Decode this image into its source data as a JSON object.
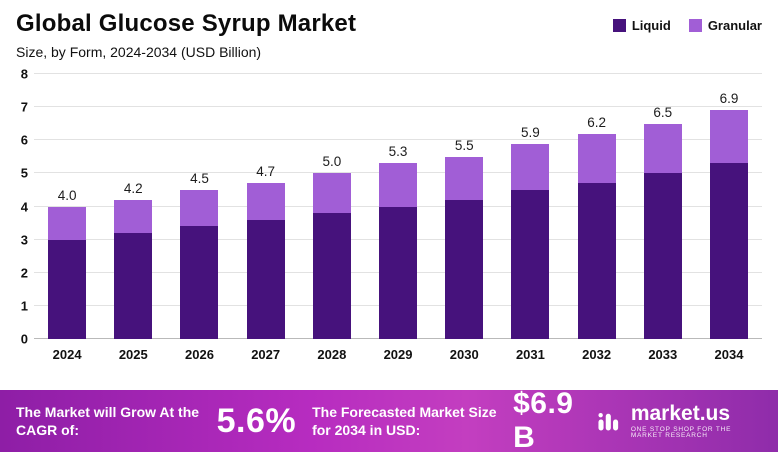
{
  "title": "Global Glucose Syrup Market",
  "subtitle": "Size, by Form, 2024-2034 (USD Billion)",
  "legend": [
    {
      "label": "Liquid",
      "color": "#46127c"
    },
    {
      "label": "Granular",
      "color": "#a15ed6"
    }
  ],
  "chart_data": {
    "type": "bar",
    "stacked": true,
    "title": "Global Glucose Syrup Market",
    "subtitle": "Size, by Form, 2024-2034 (USD Billion)",
    "xlabel": "",
    "ylabel": "USD Billion",
    "ylim": [
      0,
      8
    ],
    "yticks": [
      0,
      1,
      2,
      3,
      4,
      5,
      6,
      7,
      8
    ],
    "grid": true,
    "legend_position": "top-right",
    "categories": [
      "2024",
      "2025",
      "2026",
      "2027",
      "2028",
      "2029",
      "2030",
      "2031",
      "2032",
      "2033",
      "2034"
    ],
    "series": [
      {
        "name": "Liquid",
        "color": "#46127c",
        "values": [
          3.0,
          3.2,
          3.4,
          3.6,
          3.8,
          4.0,
          4.2,
          4.5,
          4.7,
          5.0,
          5.3
        ]
      },
      {
        "name": "Granular",
        "color": "#a15ed6",
        "values": [
          1.0,
          1.0,
          1.1,
          1.1,
          1.2,
          1.3,
          1.3,
          1.4,
          1.5,
          1.5,
          1.6
        ]
      }
    ],
    "totals": [
      4.0,
      4.2,
      4.5,
      4.7,
      5.0,
      5.3,
      5.5,
      5.9,
      6.2,
      6.5,
      6.9
    ]
  },
  "footer": {
    "cagr_label": "The Market will Grow At the CAGR of:",
    "cagr_value": "5.6%",
    "forecast_label": "The Forecasted Market Size for 2034 in USD:",
    "forecast_value": "$6.9 B",
    "brand": "market.us",
    "brand_tagline": "ONE STOP SHOP FOR THE MARKET RESEARCH"
  }
}
